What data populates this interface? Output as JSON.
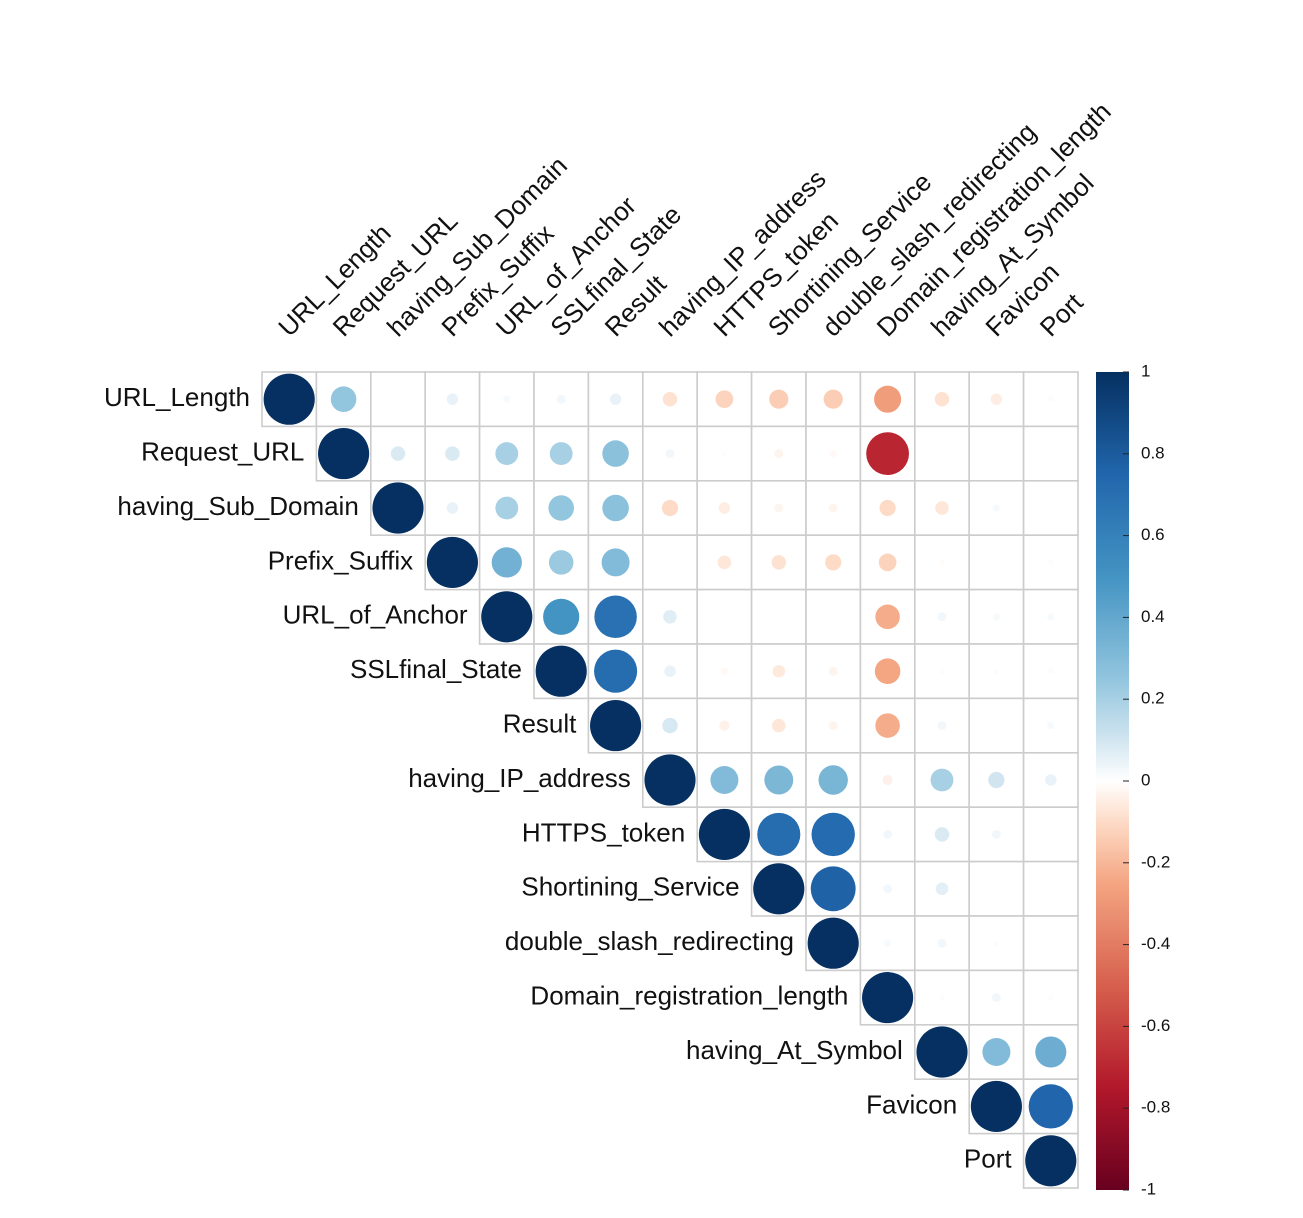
{
  "chart_data": {
    "type": "heatmap",
    "subtype": "correlation-matrix-upper-circles",
    "title": "",
    "xlabel": "",
    "ylabel": "",
    "variables": [
      "URL_Length",
      "Request_URL",
      "having_Sub_Domain",
      "Prefix_Suffix",
      "URL_of_Anchor",
      "SSLfinal_State",
      "Result",
      "having_IP_address",
      "HTTPS_token",
      "Shortining_Service",
      "double_slash_redirecting",
      "Domain_registration_length",
      "having_At_Symbol",
      "Favicon",
      "Port"
    ],
    "matrix": [
      [
        1,
        0.25,
        0,
        0.05,
        0.02,
        0.03,
        0.05,
        -0.08,
        -0.12,
        -0.14,
        -0.14,
        -0.28,
        -0.08,
        -0.05,
        0.01
      ],
      [
        null,
        1,
        0.08,
        0.08,
        0.2,
        0.2,
        0.27,
        0.03,
        0.01,
        -0.03,
        -0.02,
        -0.7,
        0,
        0,
        0
      ],
      [
        null,
        null,
        1,
        0.05,
        0.2,
        0.25,
        0.27,
        -0.1,
        -0.05,
        -0.03,
        -0.03,
        -0.1,
        -0.07,
        0.02,
        0
      ],
      [
        null,
        null,
        null,
        1,
        0.35,
        0.23,
        0.3,
        0,
        -0.07,
        -0.08,
        -0.1,
        -0.12,
        -0.01,
        0,
        0.01
      ],
      [
        null,
        null,
        null,
        null,
        1,
        0.5,
        0.69,
        0.07,
        0,
        0,
        0,
        -0.23,
        0.03,
        0.02,
        0.02
      ],
      [
        null,
        null,
        null,
        null,
        null,
        1,
        0.71,
        0.05,
        -0.02,
        -0.06,
        -0.03,
        -0.25,
        0.01,
        0.01,
        0.01
      ],
      [
        null,
        null,
        null,
        null,
        null,
        null,
        1,
        0.09,
        -0.04,
        -0.07,
        -0.03,
        -0.23,
        0.03,
        0,
        0.02
      ],
      [
        null,
        null,
        null,
        null,
        null,
        null,
        null,
        1,
        0.3,
        0.32,
        0.33,
        -0.04,
        0.2,
        0.1,
        0.05
      ],
      [
        null,
        null,
        null,
        null,
        null,
        null,
        null,
        null,
        1,
        0.71,
        0.72,
        0.03,
        0.08,
        0.03,
        0
      ],
      [
        null,
        null,
        null,
        null,
        null,
        null,
        null,
        null,
        null,
        1,
        0.77,
        0.03,
        0.06,
        0,
        0
      ],
      [
        null,
        null,
        null,
        null,
        null,
        null,
        null,
        null,
        null,
        null,
        1,
        0.02,
        0.03,
        0.01,
        0
      ],
      [
        null,
        null,
        null,
        null,
        null,
        null,
        null,
        null,
        null,
        null,
        null,
        1,
        0.01,
        0.03,
        0.01
      ],
      [
        null,
        null,
        null,
        null,
        null,
        null,
        null,
        null,
        null,
        null,
        null,
        null,
        1,
        0.3,
        0.37
      ],
      [
        null,
        null,
        null,
        null,
        null,
        null,
        null,
        null,
        null,
        null,
        null,
        null,
        null,
        1,
        0.75
      ],
      [
        null,
        null,
        null,
        null,
        null,
        null,
        null,
        null,
        null,
        null,
        null,
        null,
        null,
        null,
        1
      ]
    ],
    "color_scale": {
      "min": -1,
      "max": 1,
      "ticks": [
        "1",
        "0.8",
        "0.6",
        "0.4",
        "0.2",
        "0",
        "-0.2",
        "-0.4",
        "-0.6",
        "-0.8",
        "-1"
      ],
      "stops": [
        {
          "value": -1,
          "color": "#67001F"
        },
        {
          "value": -0.75,
          "color": "#B2182B"
        },
        {
          "value": -0.5,
          "color": "#D6604D"
        },
        {
          "value": -0.25,
          "color": "#F4A582"
        },
        {
          "value": -0.1,
          "color": "#FDDBC7"
        },
        {
          "value": 0,
          "color": "#FFFFFF"
        },
        {
          "value": 0.1,
          "color": "#D1E5F0"
        },
        {
          "value": 0.25,
          "color": "#92C5DE"
        },
        {
          "value": 0.5,
          "color": "#4393C3"
        },
        {
          "value": 0.75,
          "color": "#2166AC"
        },
        {
          "value": 1,
          "color": "#053061"
        }
      ]
    },
    "grid": true,
    "grid_color": "#cccccc",
    "label_color": "#111111",
    "legend": "right"
  }
}
